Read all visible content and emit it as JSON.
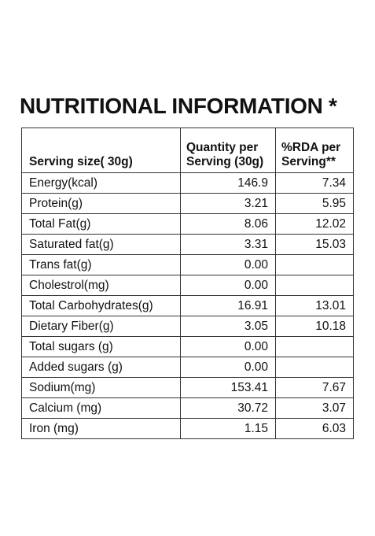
{
  "title": "NUTRITIONAL INFORMATION *",
  "table": {
    "header": {
      "serving": "Serving size( 30g)",
      "quantity_line1": "Quantity per",
      "quantity_line2": "Serving (30g)",
      "rda_line1": "%RDA per",
      "rda_line2": "Serving**"
    },
    "rows": [
      {
        "name": "Energy(kcal)",
        "quantity": "146.9",
        "rda": "7.34"
      },
      {
        "name": "Protein(g)",
        "quantity": "3.21",
        "rda": "5.95"
      },
      {
        "name": "Total Fat(g)",
        "quantity": "8.06",
        "rda": "12.02"
      },
      {
        "name": "Saturated fat(g)",
        "quantity": "3.31",
        "rda": "15.03"
      },
      {
        "name": "Trans fat(g)",
        "quantity": "0.00",
        "rda": ""
      },
      {
        "name": "Cholestrol(mg)",
        "quantity": "0.00",
        "rda": ""
      },
      {
        "name": "Total Carbohydrates(g)",
        "quantity": "16.91",
        "rda": "13.01"
      },
      {
        "name": "Dietary Fiber(g)",
        "quantity": "3.05",
        "rda": "10.18"
      },
      {
        "name": "Total sugars (g)",
        "quantity": "0.00",
        "rda": ""
      },
      {
        "name": "Added sugars (g)",
        "quantity": "0.00",
        "rda": ""
      },
      {
        "name": "Sodium(mg)",
        "quantity": "153.41",
        "rda": "7.67"
      },
      {
        "name": "Calcium (mg)",
        "quantity": "30.72",
        "rda": "3.07"
      },
      {
        "name": "Iron (mg)",
        "quantity": "1.15",
        "rda": "6.03"
      }
    ]
  }
}
